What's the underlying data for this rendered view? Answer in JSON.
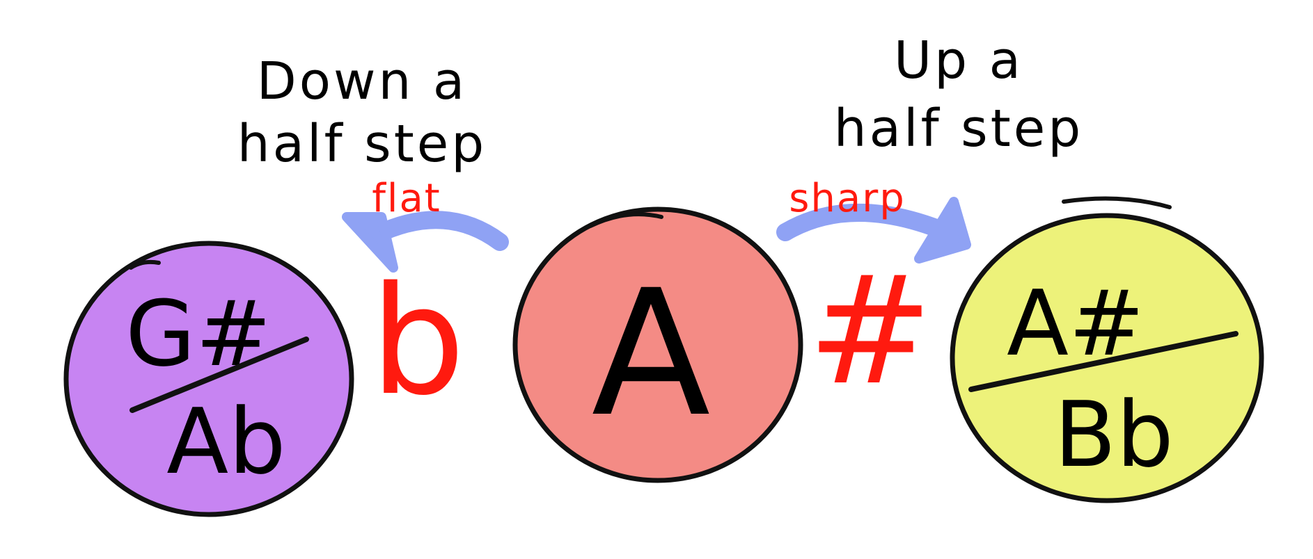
{
  "left_caption": {
    "line1": "Down a",
    "line2": "half step"
  },
  "right_caption": {
    "line1": "Up a",
    "line2": "half step"
  },
  "flat_label": "flat",
  "sharp_label": "sharp",
  "flat_symbol": "b",
  "sharp_symbol": "#",
  "notes": {
    "left": {
      "top": "G#",
      "bottom": "Ab",
      "color": "#C784F2"
    },
    "center": {
      "label": "A",
      "color": "#F48B85"
    },
    "right": {
      "top": "A#",
      "bottom": "Bb",
      "color": "#EDF27A"
    }
  },
  "colors": {
    "accidental": "#FF1A0F",
    "arrow": "#8FA2F4",
    "outline": "#111111"
  }
}
